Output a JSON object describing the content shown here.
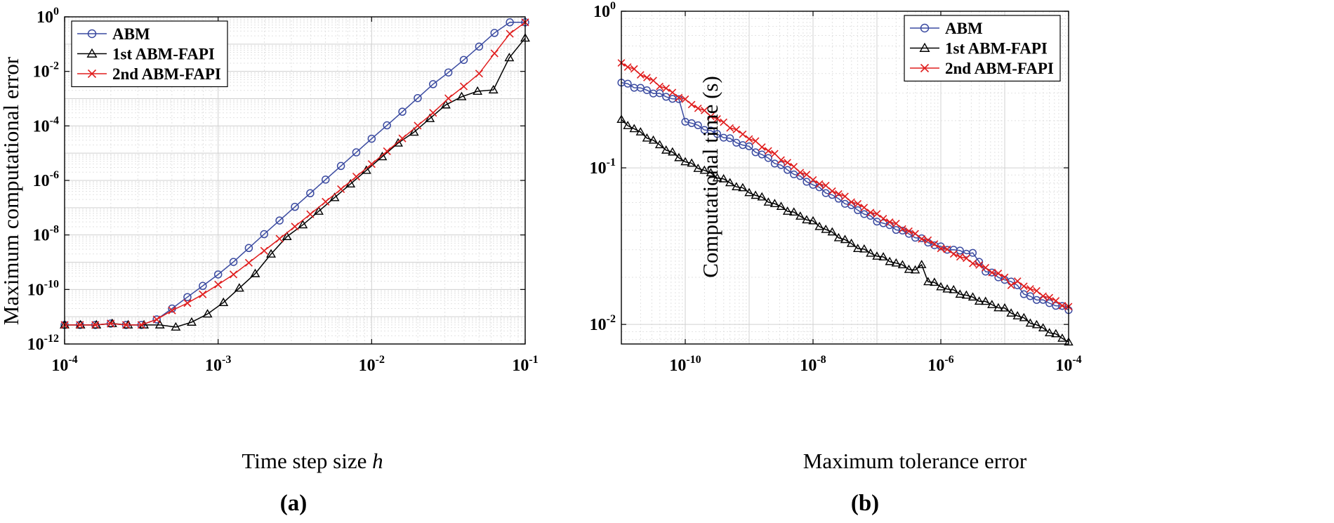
{
  "chart_data": [
    {
      "id": "a",
      "type": "line",
      "scale": "log-log",
      "panel_label": "(a)",
      "xlabel": "Time step size ",
      "xlabel_italic": "h",
      "ylabel": "Maximum computational error",
      "xlim": [
        0.0001,
        0.1
      ],
      "ylim": [
        1e-12,
        1
      ],
      "xticks": [
        {
          "base": "10",
          "exp": "-4",
          "value": 0.0001
        },
        {
          "base": "10",
          "exp": "-3",
          "value": 0.001
        },
        {
          "base": "10",
          "exp": "-2",
          "value": 0.01
        },
        {
          "base": "10",
          "exp": "-1",
          "value": 0.1
        }
      ],
      "yticks": [
        {
          "base": "10",
          "exp": "-12",
          "value": 1e-12
        },
        {
          "base": "10",
          "exp": "-10",
          "value": 1e-10
        },
        {
          "base": "10",
          "exp": "-8",
          "value": 1e-08
        },
        {
          "base": "10",
          "exp": "-6",
          "value": 1e-06
        },
        {
          "base": "10",
          "exp": "-4",
          "value": 0.0001
        },
        {
          "base": "10",
          "exp": "-2",
          "value": 0.01
        },
        {
          "base": "10",
          "exp": "0",
          "value": 1
        }
      ],
      "legend_position": "top-left",
      "series": [
        {
          "name": "ABM",
          "color": "#3a4aa0",
          "marker": "circle",
          "exps": [
            -11.3,
            -11.3,
            -11.3,
            -11.25,
            -11.3,
            -11.3,
            -11.1,
            -10.7,
            -10.28,
            -9.87,
            -9.45,
            -8.99,
            -8.48,
            -7.97,
            -7.47,
            -6.97,
            -6.47,
            -5.97,
            -5.47,
            -4.97,
            -4.47,
            -3.98,
            -3.48,
            -2.98,
            -2.47,
            -2.04,
            -1.58,
            -1.09,
            -0.59,
            -0.2,
            -0.2
          ]
        },
        {
          "name": "1st ABM-FAPI",
          "color": "#000000",
          "marker": "triangle",
          "exps": [
            -11.3,
            -11.3,
            -11.3,
            -11.25,
            -11.3,
            -11.3,
            -11.3,
            -11.38,
            -11.2,
            -10.9,
            -10.48,
            -9.95,
            -9.42,
            -8.7,
            -8.06,
            -7.63,
            -7.13,
            -6.63,
            -6.13,
            -5.63,
            -5.13,
            -4.63,
            -4.23,
            -3.73,
            -3.23,
            -2.93,
            -2.73,
            -2.68,
            -1.5,
            -0.78
          ]
        },
        {
          "name": "2nd ABM-FAPI",
          "color": "#e01e1e",
          "marker": "x",
          "exps": [
            -11.3,
            -11.3,
            -11.3,
            -11.25,
            -11.3,
            -11.3,
            -11.1,
            -10.77,
            -10.5,
            -10.18,
            -9.82,
            -9.45,
            -9.02,
            -8.58,
            -8.14,
            -7.69,
            -7.24,
            -6.78,
            -6.32,
            -5.86,
            -5.4,
            -4.93,
            -4.46,
            -3.99,
            -3.52,
            -2.99,
            -2.55,
            -2.08,
            -1.34,
            -0.62,
            -0.2
          ]
        }
      ]
    },
    {
      "id": "b",
      "type": "line",
      "scale": "log-log",
      "panel_label": "(b)",
      "xlabel": "Maximum tolerance error",
      "ylabel": "Computational time (s)",
      "xlim": [
        1e-11,
        0.0001
      ],
      "ylim": [
        0.0075,
        1
      ],
      "xticks": [
        {
          "base": "10",
          "exp": "-10",
          "value": 1e-10
        },
        {
          "base": "10",
          "exp": "-8",
          "value": 1e-08
        },
        {
          "base": "10",
          "exp": "-6",
          "value": 1e-06
        },
        {
          "base": "10",
          "exp": "-4",
          "value": 0.0001
        }
      ],
      "yticks": [
        {
          "base": "10",
          "exp": "-2",
          "value": 0.01
        },
        {
          "base": "10",
          "exp": "-1",
          "value": 0.1
        },
        {
          "base": "10",
          "exp": "0",
          "value": 1
        }
      ],
      "legend_position": "top-right",
      "series": [
        {
          "name": "ABM",
          "color": "#3a4aa0",
          "marker": "circle",
          "x_exp_range": [
            -11,
            -4
          ],
          "anchors": [
            [
              0,
              0.35
            ],
            [
              0.9,
              0.27
            ],
            [
              1.0,
              0.2
            ],
            [
              2.0,
              0.135
            ],
            [
              3.0,
              0.078
            ],
            [
              4.0,
              0.046
            ],
            [
              5.0,
              0.031
            ],
            [
              5.55,
              0.028
            ],
            [
              5.65,
              0.0225
            ],
            [
              6.1,
              0.0185
            ],
            [
              6.15,
              0.0195
            ],
            [
              6.3,
              0.0155
            ],
            [
              7.0,
              0.0125
            ]
          ],
          "count": 71
        },
        {
          "name": "1st ABM-FAPI",
          "color": "#000000",
          "marker": "triangle",
          "x_exp_range": [
            -11,
            -4
          ],
          "anchors": [
            [
              0,
              0.2
            ],
            [
              1.0,
              0.11
            ],
            [
              2.0,
              0.07
            ],
            [
              3.0,
              0.045
            ],
            [
              3.7,
              0.031
            ],
            [
              4.0,
              0.0275
            ],
            [
              4.6,
              0.022
            ],
            [
              4.7,
              0.024
            ],
            [
              4.8,
              0.019
            ],
            [
              5.0,
              0.0175
            ],
            [
              6.0,
              0.0125
            ],
            [
              7.0,
              0.0078
            ]
          ],
          "count": 71
        },
        {
          "name": "2nd ABM-FAPI",
          "color": "#e01e1e",
          "marker": "x",
          "x_exp_range": [
            -11,
            -4
          ],
          "anchors": [
            [
              0,
              0.47
            ],
            [
              1.0,
              0.27
            ],
            [
              2.0,
              0.155
            ],
            [
              3.0,
              0.084
            ],
            [
              4.0,
              0.05
            ],
            [
              5.0,
              0.031
            ],
            [
              6.0,
              0.02
            ],
            [
              6.1,
              0.018
            ],
            [
              6.15,
              0.019
            ],
            [
              7.0,
              0.0128
            ]
          ],
          "count": 71
        }
      ]
    }
  ]
}
